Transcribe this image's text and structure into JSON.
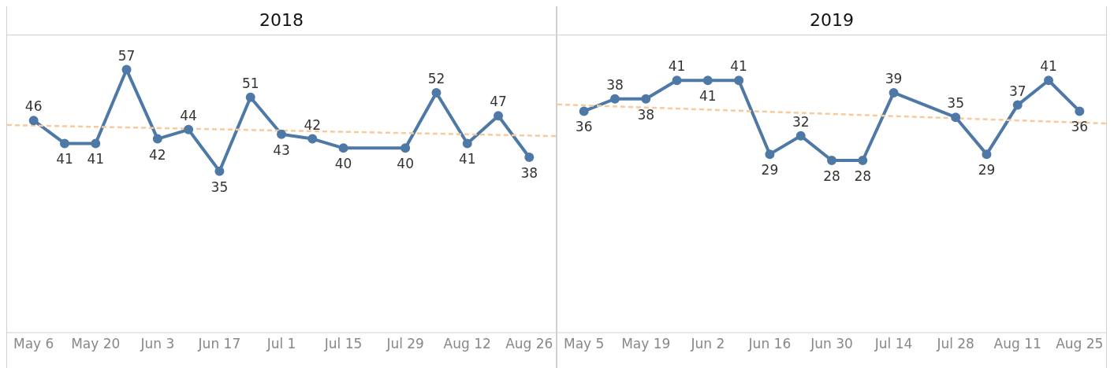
{
  "chart_data": [
    {
      "type": "line",
      "title": "2018",
      "xlim": [
        "2018-04-30",
        "2018-09-01"
      ],
      "xticks": [
        {
          "value": "2018-05-06",
          "label": "May 6"
        },
        {
          "value": "2018-05-20",
          "label": "May 20"
        },
        {
          "value": "2018-06-03",
          "label": "Jun 3"
        },
        {
          "value": "2018-06-17",
          "label": "Jun 17"
        },
        {
          "value": "2018-07-01",
          "label": "Jul 1"
        },
        {
          "value": "2018-07-15",
          "label": "Jul 15"
        },
        {
          "value": "2018-07-29",
          "label": "Jul 29"
        },
        {
          "value": "2018-08-12",
          "label": "Aug 12"
        },
        {
          "value": "2018-08-26",
          "label": "Aug 26"
        }
      ],
      "tick_labels": "x",
      "legend": false,
      "series": [
        {
          "color": "#4e79a7",
          "marker": "circle",
          "line_style": "solid",
          "x": [
            "2018-05-06",
            "2018-05-13",
            "2018-05-20",
            "2018-05-27",
            "2018-06-03",
            "2018-06-10",
            "2018-06-17",
            "2018-06-24",
            "2018-07-01",
            "2018-07-08",
            "2018-07-15",
            "2018-07-29",
            "2018-08-05",
            "2018-08-12",
            "2018-08-19",
            "2018-08-26"
          ],
          "values": [
            46,
            41,
            41,
            57,
            42,
            44,
            35,
            51,
            43,
            42,
            40,
            40,
            52,
            41,
            47,
            38
          ],
          "value_labels": [
            "46",
            "41",
            "41",
            "57",
            "42",
            "44",
            "35",
            "51",
            "43",
            "42",
            "40",
            "40",
            "52",
            "41",
            "47",
            "38"
          ]
        },
        {
          "type": "line",
          "color": "#f8c99b",
          "marker": "none",
          "line_style": "dashed",
          "x": [
            "2018-04-30",
            "2018-09-01"
          ],
          "values": [
            45.0,
            42.6
          ]
        }
      ]
    },
    {
      "type": "line",
      "title": "2019",
      "xlim": [
        "2019-04-29",
        "2019-08-31"
      ],
      "xticks": [
        {
          "value": "2019-05-05",
          "label": "May 5"
        },
        {
          "value": "2019-05-19",
          "label": "May 19"
        },
        {
          "value": "2019-06-02",
          "label": "Jun 2"
        },
        {
          "value": "2019-06-16",
          "label": "Jun 16"
        },
        {
          "value": "2019-06-30",
          "label": "Jun 30"
        },
        {
          "value": "2019-07-14",
          "label": "Jul 14"
        },
        {
          "value": "2019-07-28",
          "label": "Jul 28"
        },
        {
          "value": "2019-08-11",
          "label": "Aug 11"
        },
        {
          "value": "2019-08-25",
          "label": "Aug 25"
        }
      ],
      "tick_labels": "x",
      "legend": false,
      "series": [
        {
          "color": "#4e79a7",
          "marker": "circle",
          "line_style": "solid",
          "x": [
            "2019-05-05",
            "2019-05-12",
            "2019-05-19",
            "2019-05-26",
            "2019-06-02",
            "2019-06-09",
            "2019-06-16",
            "2019-06-23",
            "2019-06-30",
            "2019-07-07",
            "2019-07-14",
            "2019-07-28",
            "2019-08-04",
            "2019-08-11",
            "2019-08-18",
            "2019-08-25"
          ],
          "values": [
            36,
            38,
            38,
            41,
            41,
            41,
            29,
            32,
            28,
            28,
            39,
            35,
            29,
            37,
            41,
            36
          ],
          "value_labels": [
            "36",
            "38",
            "38",
            "41",
            "41",
            "41",
            "29",
            "32",
            "28",
            "28",
            "39",
            "35",
            "29",
            "37",
            "41",
            "36"
          ]
        },
        {
          "type": "line",
          "color": "#f8c99b",
          "marker": "none",
          "line_style": "dashed",
          "x": [
            "2019-04-29",
            "2019-08-31"
          ],
          "values": [
            37.1,
            34.0
          ]
        }
      ]
    }
  ]
}
